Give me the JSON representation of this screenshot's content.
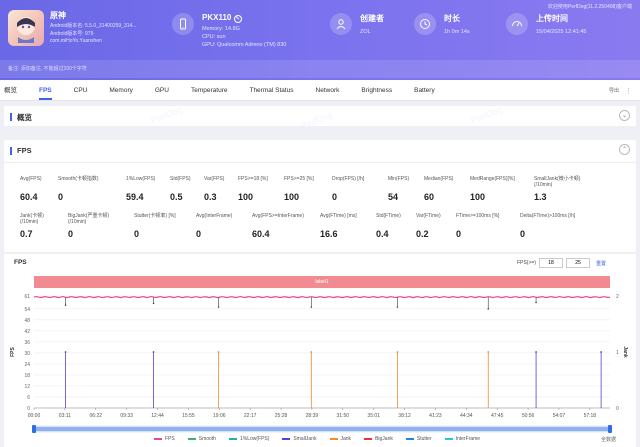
{
  "header": {
    "notice": "欢迎使用PerfDog(11.2.250408)客户端",
    "app": {
      "name": "原神",
      "lines": [
        "Android版本名: 5.5.0_31400259_314...",
        "Android版本号: 979",
        "com.miHoYo.Yuanshen"
      ]
    },
    "device": {
      "title": "PKX110",
      "lines": [
        "Memory: 14.8G",
        "CPU: sun",
        "GPU: Qualcomm Adreno (TM) 830"
      ]
    },
    "creator": {
      "title": "创建者",
      "value": "ZOL"
    },
    "duration": {
      "title": "时长",
      "value": "1h 0m 14s"
    },
    "upload": {
      "title": "上传时间",
      "value": "15/04/2025 12:41:45"
    },
    "remark": "备注: 添加备注, 不能超过200个字符"
  },
  "tabs": [
    "概览",
    "FPS",
    "CPU",
    "Memory",
    "GPU",
    "Temperature",
    "Thermal Status",
    "Network",
    "Brightness",
    "Battery"
  ],
  "active_tab": "FPS",
  "export_label": "导出",
  "overview": {
    "title": "概览"
  },
  "fps_section": {
    "title": "FPS",
    "row1": [
      {
        "label": "Avg(FPS)",
        "value": "60.4"
      },
      {
        "label": "Smooth(卡顿指数)",
        "value": "0"
      },
      {
        "label": "1%Low(FPS)",
        "value": "59.4"
      },
      {
        "label": "Std(FPS)",
        "value": "0.5"
      },
      {
        "label": "Var(FPS)",
        "value": "0.3"
      },
      {
        "label": "FPS>=18 [%]",
        "value": "100"
      },
      {
        "label": "FPS>=25 [%]",
        "value": "100"
      },
      {
        "label": "Drop(FPS) [/h]",
        "value": "0"
      },
      {
        "label": "Min(FPS)",
        "value": "54"
      },
      {
        "label": "Median(FPS)",
        "value": "60"
      },
      {
        "label": "MedRange(FPS)[%]",
        "value": "100"
      },
      {
        "label": "SmallJank(微小卡顿)\n(/10min)",
        "value": "1.3"
      }
    ],
    "row2": [
      {
        "label": "Jank(卡顿)\n(/10min)",
        "value": "0.7"
      },
      {
        "label": "BigJank(严重卡顿)\n(/10min)",
        "value": "0"
      },
      {
        "label": "Stutter(卡顿率) [%]",
        "value": "0"
      },
      {
        "label": "Avg(InterFrame)",
        "value": "0"
      },
      {
        "label": "Avg(FPS>=InterFrame)",
        "value": "60.4"
      },
      {
        "label": "Avg(FTime) [ms]",
        "value": "16.6"
      },
      {
        "label": "Std(FTime)",
        "value": "0.4"
      },
      {
        "label": "Var(FTime)",
        "value": "0.2"
      },
      {
        "label": "FTime>=100ms [%]",
        "value": "0"
      },
      {
        "label": "Delta(FTime)>100ms [/h]",
        "value": "0"
      }
    ]
  },
  "chart_filter": {
    "label": "FPS(>=)",
    "low": "18",
    "high": "25",
    "reset": "重置"
  },
  "chart_data": {
    "type": "line",
    "title": "FPS",
    "label_band": "label1",
    "ylabel": "FPS",
    "y2label": "Jank",
    "yticks": [
      0,
      6,
      12,
      18,
      24,
      30,
      36,
      42,
      48,
      54,
      61
    ],
    "ylim": [
      0,
      61
    ],
    "y2ticks": [
      0,
      1,
      2
    ],
    "y2lim": [
      0,
      2
    ],
    "x_ticks": [
      "00:00",
      "03:11",
      "06:22",
      "09:33",
      "12:44",
      "15:55",
      "19:06",
      "22:17",
      "25:28",
      "28:39",
      "31:50",
      "35:01",
      "38:12",
      "41:23",
      "44:34",
      "47:45",
      "50:56",
      "54:07",
      "57:18"
    ],
    "x_range_min": [
      0,
      60.23
    ],
    "series": [
      {
        "name": "FPS",
        "color": "#e2479b",
        "baseline": 60.4,
        "dips": [
          [
            3.3,
            56
          ],
          [
            12.5,
            57
          ],
          [
            19.3,
            55
          ],
          [
            29,
            55
          ],
          [
            38,
            55
          ],
          [
            47.5,
            54
          ],
          [
            52.5,
            57.5
          ]
        ]
      },
      {
        "name": "SmallJank",
        "color": "#5a3fd6",
        "spikes": [
          3.3,
          12.5,
          52.5,
          59.3
        ]
      },
      {
        "name": "Jank",
        "color": "#f28a2e",
        "spikes": [
          19.3,
          29,
          38,
          47.5
        ]
      }
    ],
    "legend": [
      {
        "name": "FPS",
        "color": "#e2479b"
      },
      {
        "name": "Smooth",
        "color": "#3cb371"
      },
      {
        "name": "1%Low(FPS)",
        "color": "#20b2aa"
      },
      {
        "name": "SmallJank",
        "color": "#5a3fd6"
      },
      {
        "name": "Jank",
        "color": "#f28a2e"
      },
      {
        "name": "BigJank",
        "color": "#e53935"
      },
      {
        "name": "Stutter",
        "color": "#1e88e5"
      },
      {
        "name": "InterFrame",
        "color": "#26c6da"
      }
    ],
    "reset_zoom": "全数据"
  }
}
